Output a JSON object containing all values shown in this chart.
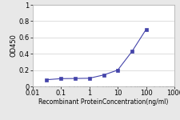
{
  "x": [
    0.032,
    0.1,
    0.32,
    1,
    3.2,
    10,
    32,
    100
  ],
  "y": [
    0.082,
    0.095,
    0.097,
    0.1,
    0.14,
    0.2,
    0.43,
    0.7
  ],
  "line_color": "#4444aa",
  "marker": "s",
  "marker_color": "#4444aa",
  "marker_size": 2.5,
  "xlabel": "Recombinant ProteinConcentration(ng/ml)",
  "ylabel": "OD450",
  "xlim": [
    0.01,
    1000
  ],
  "ylim": [
    0,
    1
  ],
  "yticks": [
    0,
    0.2,
    0.4,
    0.6,
    0.8,
    1.0
  ],
  "ytick_labels": [
    "0",
    "0.2",
    "0.4",
    "0.6",
    "0.8",
    "1"
  ],
  "xticks": [
    0.01,
    0.1,
    1,
    10,
    100,
    1000
  ],
  "xtick_labels": [
    "0.01",
    "0.1",
    "1",
    "10",
    "100",
    "1000"
  ],
  "background_color": "#e8e8e8",
  "plot_bg_color": "#ffffff",
  "grid_color": "#d0d0d0",
  "xlabel_fontsize": 5.5,
  "ylabel_fontsize": 6,
  "tick_fontsize": 6,
  "linewidth": 0.8
}
